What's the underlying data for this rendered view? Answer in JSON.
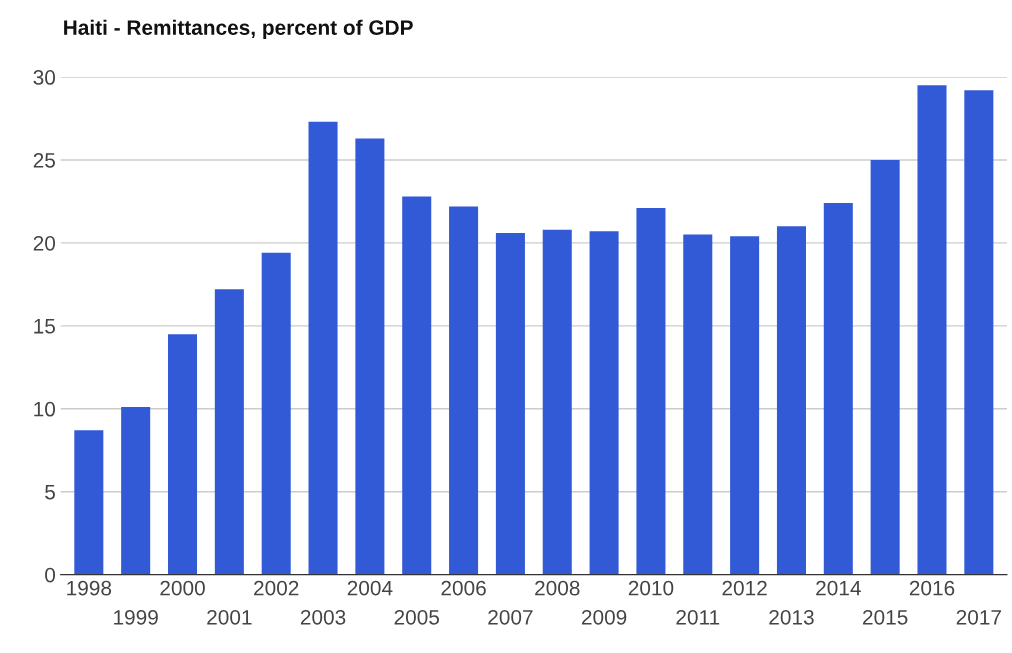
{
  "chart_data": {
    "type": "bar",
    "title": "Haiti - Remittances, percent of GDP",
    "categories": [
      "1998",
      "1999",
      "2000",
      "2001",
      "2002",
      "2003",
      "2004",
      "2005",
      "2006",
      "2007",
      "2008",
      "2009",
      "2010",
      "2011",
      "2012",
      "2013",
      "2014",
      "2015",
      "2016",
      "2017"
    ],
    "values": [
      8.7,
      10.1,
      14.5,
      17.2,
      19.4,
      27.3,
      26.3,
      22.8,
      22.2,
      20.6,
      20.8,
      20.7,
      22.1,
      20.5,
      20.4,
      21.0,
      22.4,
      25.0,
      29.5,
      29.2
    ],
    "color": "#325ad6",
    "ylim": [
      0,
      30
    ],
    "yticks": [
      0,
      5,
      10,
      15,
      20,
      25,
      30
    ],
    "grid": "y",
    "legend": false
  }
}
